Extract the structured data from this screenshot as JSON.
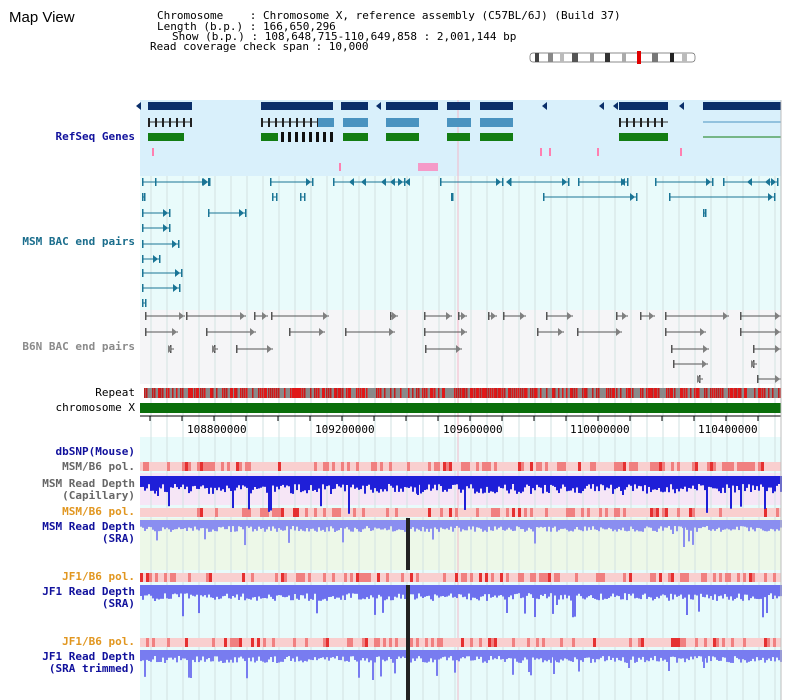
{
  "app": {
    "title": "Map View"
  },
  "header": {
    "chromosome": "Chromosome    : Chromosome X, reference assembly (C57BL/6J) (Build 37)",
    "length": "Length (b.p.) : 166,650,296",
    "show": "Show (b.p.) : 108,648,715-110,649,858 : 2,001,144 bp",
    "coverage": "Read coverage check span : 10,000"
  },
  "tracks": {
    "refseq": "RefSeq Genes",
    "msm_bac": "MSM BAC end pairs",
    "b6n_bac": "B6N BAC end pairs",
    "repeat": "Repeat",
    "chromosome": "chromosome X",
    "dbsnp": "dbSNP(Mouse)",
    "msm_b6_pol_1": "MSM/B6 pol.",
    "msm_read_depth_cap_1": "MSM Read Depth",
    "msm_read_depth_cap_2": "(Capillary)",
    "msm_b6_pol_2": "MSM/B6 pol.",
    "msm_read_depth_sra_1": "MSM Read Depth",
    "msm_read_depth_sra_2": "(SRA)",
    "jf1_b6_pol_1": "JF1/B6 pol.",
    "jf1_read_depth_sra_1": "JF1 Read Depth",
    "jf1_read_depth_sra_2": "(SRA)",
    "jf1_b6_pol_2": "JF1/B6 pol.",
    "jf1_read_depth_trim_1": "JF1 Read Depth",
    "jf1_read_depth_trim_2": "(SRA trimmed)"
  },
  "axis": {
    "ticks": [
      "108800000",
      "109200000",
      "109600000",
      "110000000",
      "110400000"
    ]
  },
  "colors": {
    "refseq_bg": "#d9f0fb",
    "gene_navy": "#0b2f6a",
    "gene_mid": "#4a93c0",
    "gene_green": "#137d13",
    "bac_teal": "#1a7596",
    "bac_gray": "#808080",
    "repeat_red": "#e01818",
    "chromosome_green": "#0a6e0a",
    "depth_blue": "#1f1fd8",
    "depth_light": "#8a8ef0",
    "pol_pink": "#f7b0b0",
    "pol_red": "#e53030"
  }
}
